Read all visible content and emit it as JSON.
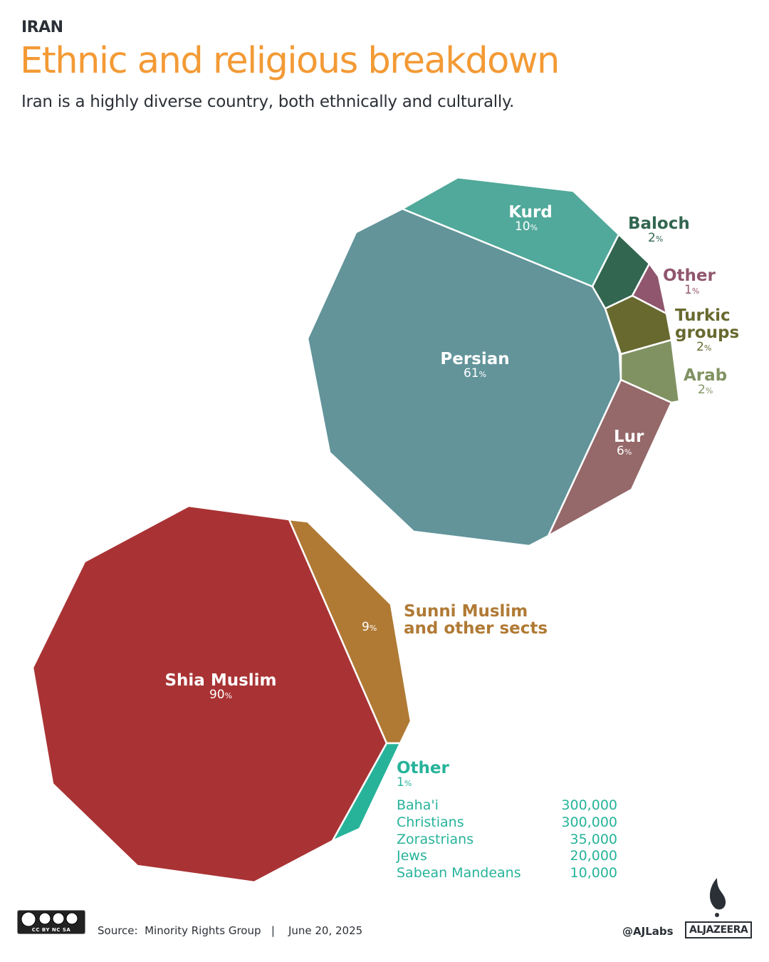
{
  "header": {
    "kicker": "IRAN",
    "title": "Ethnic and religious breakdown",
    "subtitle": "Iran is a highly diverse country, both ethnically and culturally."
  },
  "chart_data": [
    {
      "type": "voronoi-treemap",
      "title": "",
      "segments": [
        {
          "name": "Persian",
          "value": 61,
          "color": "#62949a"
        },
        {
          "name": "Kurd",
          "value": 10,
          "color": "#50a99a"
        },
        {
          "name": "Baloch",
          "value": 2,
          "color": "#326650"
        },
        {
          "name": "Other",
          "value": 1,
          "color": "#90566d"
        },
        {
          "name": "Turkic groups",
          "value": 2,
          "color": "#68692f"
        },
        {
          "name": "Arab",
          "value": 2,
          "color": "#819262"
        },
        {
          "name": "Lur",
          "value": 6,
          "color": "#956869"
        }
      ]
    },
    {
      "type": "voronoi-treemap",
      "title": "",
      "segments": [
        {
          "name": "Shia Muslim",
          "value": 90,
          "color": "#a93334"
        },
        {
          "name": "Sunni Muslim and other sects",
          "value": 9,
          "color": "#b07a35"
        },
        {
          "name": "Other",
          "value": 1,
          "color": "#26b39a"
        }
      ],
      "other_breakdown": [
        {
          "name": "Baha'i",
          "value": "300,000"
        },
        {
          "name": "Christians",
          "value": "300,000"
        },
        {
          "name": "Zorastrians",
          "value": "35,000"
        },
        {
          "name": "Jews",
          "value": "20,000"
        },
        {
          "name": "Sabean Mandeans",
          "value": "10,000"
        }
      ]
    }
  ],
  "pct_sign": "%",
  "footer": {
    "source": "Source:  Minority Rights Group   |    June 20, 2025",
    "handle": "@AJLabs",
    "brand": "ALJAZEERA",
    "license": "CC BY NC SA"
  }
}
